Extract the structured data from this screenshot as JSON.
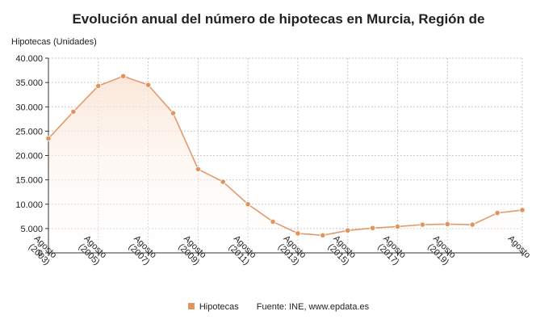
{
  "chart_data": {
    "type": "area",
    "title": "Evolución anual del número de hipotecas en Murcia, Región de",
    "ylabel": "Hipotecas (Unidades)",
    "xlabel": "",
    "ylim": [
      0,
      40000
    ],
    "yticks": [
      "0",
      "5.000",
      "10.000",
      "15.000",
      "20.000",
      "25.000",
      "30.000",
      "35.000",
      "40.000"
    ],
    "yticks_values": [
      0,
      5000,
      10000,
      15000,
      20000,
      25000,
      30000,
      35000,
      40000
    ],
    "x_tick_labels": [
      {
        "line1": "Agosto",
        "line2": "(2003)"
      },
      {
        "line1": "Agosto",
        "line2": "(2005)"
      },
      {
        "line1": "Agosto",
        "line2": "(2007)"
      },
      {
        "line1": "Agosto",
        "line2": "(2009)"
      },
      {
        "line1": "Agosto",
        "line2": "(2011)"
      },
      {
        "line1": "Agosto",
        "line2": "(2013)"
      },
      {
        "line1": "Agosto",
        "line2": "(2015)"
      },
      {
        "line1": "Agosto",
        "line2": "(2017)"
      },
      {
        "line1": "Agosto",
        "line2": "(2019)"
      },
      {
        "line1": "Agosto",
        "line2": ""
      }
    ],
    "x_tick_indices": [
      0,
      2,
      4,
      6,
      8,
      10,
      12,
      14,
      16,
      19
    ],
    "series": [
      {
        "name": "Hipotecas",
        "values": [
          23500,
          29000,
          34300,
          36300,
          34500,
          28700,
          17200,
          14600,
          10000,
          6400,
          4000,
          3600,
          4600,
          5100,
          5400,
          5800,
          5900,
          5800,
          8200,
          8800
        ]
      }
    ],
    "grid": true,
    "legend_position": "bottom",
    "colors": {
      "line": "#e39a6b",
      "marker": "#e0955f",
      "fill_top": "#fbe3d3",
      "grid": "#c9c9c9",
      "axis": "#333333"
    }
  },
  "legend": {
    "series_label": "Hipotecas",
    "source": "Fuente: INE, www.epdata.es"
  }
}
